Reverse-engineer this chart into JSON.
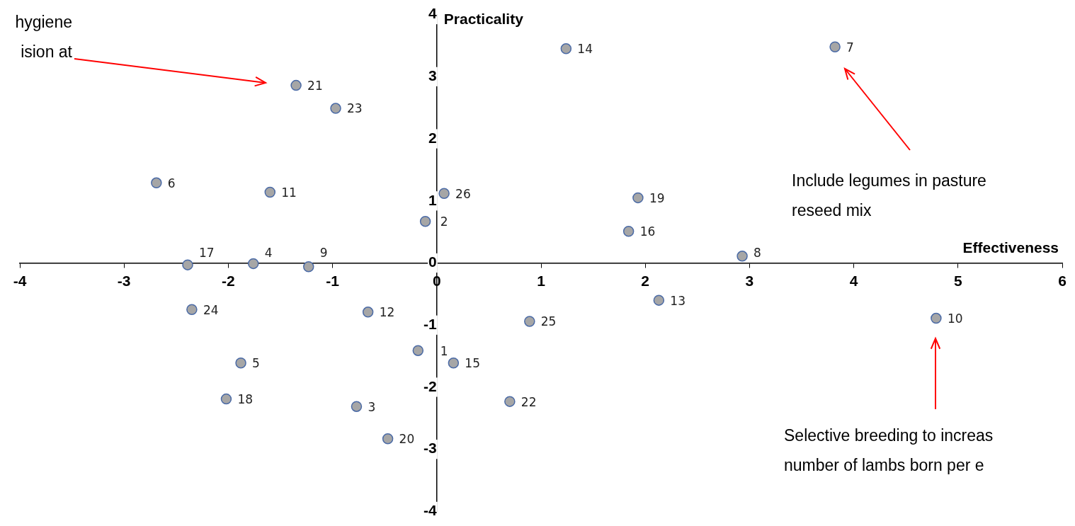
{
  "chart_data": {
    "type": "scatter",
    "xlabel": "Effectiveness",
    "ylabel": "Practicality",
    "xlim": [
      -4,
      6
    ],
    "xticks": [
      -4,
      -3,
      -2,
      -1,
      0,
      1,
      2,
      3,
      4,
      5,
      6
    ],
    "ylim": [
      -4,
      4
    ],
    "yticks": [
      -4,
      -3,
      -2,
      -1,
      0,
      1,
      2,
      3,
      4
    ],
    "grid": false,
    "legend": false,
    "marker": "circle",
    "series": [
      {
        "color": "#a6a6a6",
        "x": [
          -0.18,
          -0.11,
          -0.77,
          -1.76,
          -1.88,
          -2.69,
          3.82,
          2.93,
          -1.23,
          4.79,
          -1.6,
          -0.66,
          2.13,
          1.24,
          0.16,
          1.84,
          -2.39,
          -2.02,
          1.93,
          -0.47,
          -1.35,
          0.7,
          -0.97,
          -2.35,
          0.89,
          0.07
        ],
        "values": [
          -1.41,
          0.67,
          -2.31,
          -0.01,
          -1.61,
          1.29,
          3.48,
          0.11,
          -0.06,
          -0.89,
          1.14,
          -0.79,
          -0.6,
          3.45,
          -1.61,
          0.51,
          -0.03,
          -2.19,
          1.05,
          -2.83,
          2.86,
          -2.23,
          2.49,
          -0.75,
          -0.94,
          1.12
        ]
      }
    ],
    "annotations": [
      {
        "text": "1",
        "x": -0.18,
        "y": -1.41
      },
      {
        "text": "2",
        "x": -0.11,
        "y": 0.67
      },
      {
        "text": "3",
        "x": -0.77,
        "y": -2.31
      },
      {
        "text": "4",
        "x": -1.76,
        "y": -0.01
      },
      {
        "text": "5",
        "x": -1.88,
        "y": -1.61
      },
      {
        "text": "6",
        "x": -2.69,
        "y": 1.29
      },
      {
        "text": "7",
        "x": 3.82,
        "y": 3.48
      },
      {
        "text": "8",
        "x": 2.93,
        "y": 0.11
      },
      {
        "text": "9",
        "x": -1.23,
        "y": -0.06
      },
      {
        "text": "10",
        "x": 4.79,
        "y": -0.89
      },
      {
        "text": "11",
        "x": -1.6,
        "y": 1.14
      },
      {
        "text": "12",
        "x": -0.66,
        "y": -0.79
      },
      {
        "text": "13",
        "x": 2.13,
        "y": -0.6
      },
      {
        "text": "14",
        "x": 1.24,
        "y": 3.45
      },
      {
        "text": "15",
        "x": 0.16,
        "y": -1.61
      },
      {
        "text": "16",
        "x": 1.84,
        "y": 0.51
      },
      {
        "text": "17",
        "x": -2.39,
        "y": -0.03
      },
      {
        "text": "18",
        "x": -2.02,
        "y": -2.19
      },
      {
        "text": "19",
        "x": 1.93,
        "y": 1.05
      },
      {
        "text": "20",
        "x": -0.47,
        "y": -2.83
      },
      {
        "text": "21",
        "x": -1.35,
        "y": 2.86
      },
      {
        "text": "22",
        "x": 0.7,
        "y": -2.23
      },
      {
        "text": "23",
        "x": -0.97,
        "y": 2.49
      },
      {
        "text": "24",
        "x": -2.35,
        "y": -0.75
      },
      {
        "text": "25",
        "x": 0.89,
        "y": -0.94
      },
      {
        "text": "26",
        "x": 0.07,
        "y": 1.12
      },
      "hygiene\nision at",
      "Include legumes in pasture\nreseed mix",
      "Selective breeding to increas\nnumber of lambs born per e"
    ]
  }
}
